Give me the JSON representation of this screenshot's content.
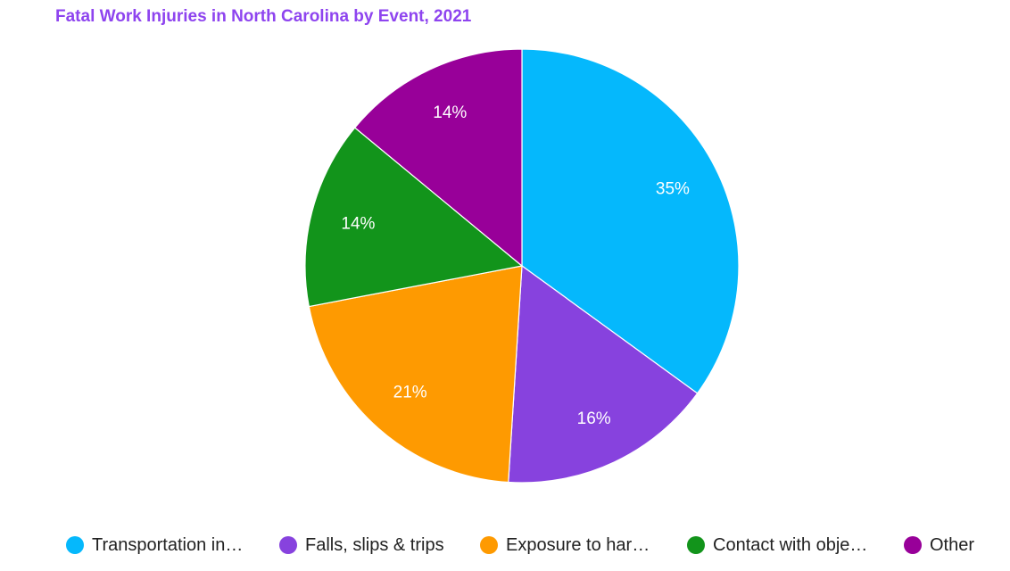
{
  "chart_data": {
    "type": "pie",
    "title": "Fatal Work Injuries in North Carolina by Event, 2021",
    "slices": [
      {
        "label": "Transportation in…",
        "value": 35,
        "display": "35%",
        "color": "#05b8fc"
      },
      {
        "label": "Falls, slips & trips",
        "value": 16,
        "display": "16%",
        "color": "#8742de"
      },
      {
        "label": "Exposure to har…",
        "value": 21,
        "display": "21%",
        "color": "#fe9a01"
      },
      {
        "label": "Contact with obje…",
        "value": 14,
        "display": "14%",
        "color": "#12941b"
      },
      {
        "label": "Other",
        "value": 14,
        "display": "14%",
        "color": "#980099"
      }
    ],
    "legend_position": "bottom",
    "start_angle": "top",
    "direction": "clockwise"
  }
}
